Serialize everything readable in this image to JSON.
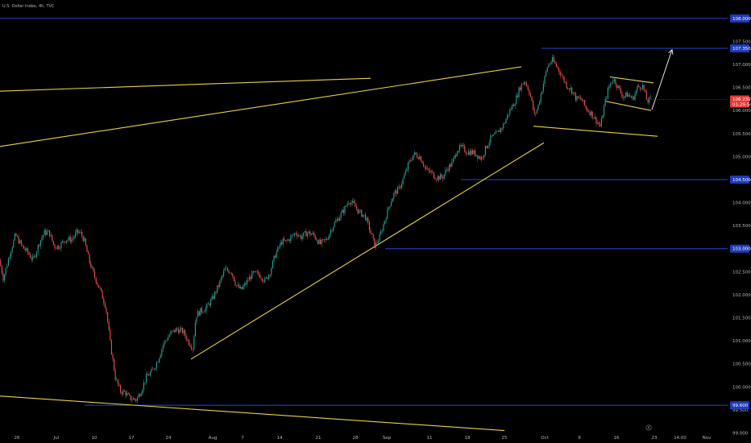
{
  "chart_data": {
    "type": "candlestick",
    "title": "U.S. Dollar Index, 4h, TVC",
    "ylim": [
      98.85,
      108.4
    ],
    "y_ticks": [
      "99.000",
      "99.500",
      "100.000",
      "100.500",
      "101.000",
      "101.500",
      "102.000",
      "102.500",
      "103.000",
      "103.500",
      "104.000",
      "104.500",
      "105.000",
      "105.500",
      "106.000",
      "106.500",
      "107.000",
      "107.500",
      "108.000"
    ],
    "x_ticks": [
      {
        "label": "26",
        "t": 21
      },
      {
        "label": "Jul",
        "t": 70
      },
      {
        "label": "10",
        "t": 117
      },
      {
        "label": "17",
        "t": 163
      },
      {
        "label": "24",
        "t": 209
      },
      {
        "label": "Aug",
        "t": 264
      },
      {
        "label": "7",
        "t": 301
      },
      {
        "label": "14",
        "t": 347
      },
      {
        "label": "21",
        "t": 395
      },
      {
        "label": "28",
        "t": 441
      },
      {
        "label": "Sep",
        "t": 480
      },
      {
        "label": "11",
        "t": 533
      },
      {
        "label": "18",
        "t": 580
      },
      {
        "label": "25",
        "t": 626
      },
      {
        "label": "Oct",
        "t": 676
      },
      {
        "label": "9",
        "t": 719
      },
      {
        "label": "16",
        "t": 765
      },
      {
        "label": "23",
        "t": 812
      },
      {
        "label": "14:00",
        "t": 844
      },
      {
        "label": "Nov",
        "t": 877
      }
    ],
    "horizontal_levels": [
      {
        "label": "108.000",
        "y": 108.0,
        "x_from": 0
      },
      {
        "label": "107.350",
        "y": 107.35,
        "x_from": 672
      },
      {
        "label": "104.500",
        "y": 104.5,
        "x_from": 572
      },
      {
        "label": "103.000",
        "y": 103.0,
        "x_from": 478
      },
      {
        "label": "99.600",
        "y": 99.6,
        "x_from": 105
      }
    ],
    "trendlines": [
      {
        "from": [
          0,
          106.42
        ],
        "to": [
          460,
          106.7
        ]
      },
      {
        "from": [
          0,
          105.22
        ],
        "to": [
          647,
          106.95
        ]
      },
      {
        "from": [
          237,
          100.6
        ],
        "to": [
          675,
          105.3
        ]
      },
      {
        "from": [
          0,
          99.8
        ],
        "to": [
          626,
          99.05
        ]
      },
      {
        "from": [
          662,
          105.66
        ],
        "to": [
          816,
          105.44
        ]
      },
      {
        "from": [
          757,
          106.73
        ],
        "to": [
          811,
          106.6
        ]
      },
      {
        "from": [
          752,
          106.2
        ],
        "to": [
          808,
          106.0
        ]
      }
    ],
    "projection_arrow": {
      "points": [
        [
          809,
          106.02
        ],
        [
          834,
          107.32
        ]
      ]
    },
    "last_price": {
      "value": "106.239",
      "countdown": "01:29:54"
    },
    "scale_mark": "A",
    "anchors": [
      [
        0,
        102.75
      ],
      [
        5,
        102.35
      ],
      [
        13,
        102.9
      ],
      [
        20,
        103.3
      ],
      [
        28,
        103.05
      ],
      [
        36,
        102.9
      ],
      [
        42,
        102.75
      ],
      [
        50,
        103.15
      ],
      [
        56,
        103.35
      ],
      [
        62,
        103.35
      ],
      [
        68,
        103.05
      ],
      [
        74,
        103.05
      ],
      [
        82,
        103.2
      ],
      [
        90,
        103.2
      ],
      [
        96,
        103.35
      ],
      [
        100,
        103.35
      ],
      [
        105,
        103.2
      ],
      [
        112,
        102.7
      ],
      [
        118,
        102.4
      ],
      [
        124,
        102.15
      ],
      [
        132,
        101.75
      ],
      [
        138,
        100.9
      ],
      [
        144,
        100.2
      ],
      [
        150,
        99.9
      ],
      [
        156,
        99.88
      ],
      [
        162,
        99.75
      ],
      [
        170,
        99.72
      ],
      [
        176,
        99.92
      ],
      [
        182,
        100.2
      ],
      [
        190,
        100.35
      ],
      [
        196,
        100.55
      ],
      [
        204,
        100.95
      ],
      [
        212,
        101.15
      ],
      [
        220,
        101.25
      ],
      [
        228,
        101.2
      ],
      [
        234,
        101.0
      ],
      [
        240,
        100.85
      ],
      [
        244,
        101.55
      ],
      [
        250,
        101.65
      ],
      [
        256,
        101.7
      ],
      [
        264,
        101.9
      ],
      [
        272,
        102.2
      ],
      [
        280,
        102.55
      ],
      [
        288,
        102.5
      ],
      [
        294,
        102.2
      ],
      [
        300,
        102.1
      ],
      [
        306,
        102.25
      ],
      [
        314,
        102.45
      ],
      [
        322,
        102.45
      ],
      [
        330,
        102.3
      ],
      [
        336,
        102.5
      ],
      [
        342,
        102.85
      ],
      [
        350,
        103.15
      ],
      [
        356,
        103.15
      ],
      [
        362,
        103.25
      ],
      [
        368,
        103.35
      ],
      [
        374,
        103.25
      ],
      [
        382,
        103.35
      ],
      [
        390,
        103.3
      ],
      [
        398,
        103.1
      ],
      [
        406,
        103.2
      ],
      [
        414,
        103.5
      ],
      [
        420,
        103.65
      ],
      [
        428,
        103.85
      ],
      [
        434,
        104.05
      ],
      [
        440,
        103.95
      ],
      [
        446,
        103.8
      ],
      [
        454,
        103.7
      ],
      [
        460,
        103.4
      ],
      [
        466,
        103.05
      ],
      [
        472,
        103.25
      ],
      [
        478,
        103.6
      ],
      [
        484,
        103.95
      ],
      [
        490,
        104.2
      ],
      [
        496,
        104.3
      ],
      [
        502,
        104.55
      ],
      [
        508,
        104.85
      ],
      [
        514,
        105.05
      ],
      [
        522,
        105.0
      ],
      [
        530,
        104.7
      ],
      [
        536,
        104.65
      ],
      [
        542,
        104.55
      ],
      [
        550,
        104.55
      ],
      [
        556,
        104.75
      ],
      [
        562,
        104.85
      ],
      [
        568,
        105.15
      ],
      [
        574,
        105.2
      ],
      [
        580,
        105.1
      ],
      [
        586,
        105.1
      ],
      [
        592,
        105.05
      ],
      [
        598,
        104.95
      ],
      [
        604,
        105.2
      ],
      [
        610,
        105.4
      ],
      [
        618,
        105.5
      ],
      [
        626,
        105.7
      ],
      [
        632,
        105.95
      ],
      [
        640,
        106.2
      ],
      [
        646,
        106.5
      ],
      [
        652,
        106.65
      ],
      [
        658,
        106.4
      ],
      [
        664,
        105.9
      ],
      [
        668,
        106.05
      ],
      [
        674,
        106.5
      ],
      [
        680,
        106.95
      ],
      [
        686,
        107.1
      ],
      [
        692,
        106.95
      ],
      [
        698,
        106.75
      ],
      [
        704,
        106.55
      ],
      [
        710,
        106.45
      ],
      [
        716,
        106.25
      ],
      [
        722,
        106.25
      ],
      [
        728,
        106.05
      ],
      [
        734,
        105.95
      ],
      [
        740,
        105.8
      ],
      [
        746,
        105.65
      ],
      [
        750,
        106.05
      ],
      [
        756,
        106.5
      ],
      [
        762,
        106.7
      ],
      [
        768,
        106.5
      ],
      [
        774,
        106.3
      ],
      [
        780,
        106.35
      ],
      [
        786,
        106.25
      ],
      [
        792,
        106.5
      ],
      [
        798,
        106.55
      ],
      [
        804,
        106.2
      ],
      [
        808,
        106.24
      ]
    ]
  },
  "colors": {
    "background": "#000000",
    "up": "#26a69a",
    "down": "#ef5350",
    "level": "#2346d6",
    "level_label_bg": "#1e3bb8",
    "trendline": "#e6d24a",
    "arrow": "#ffffff",
    "last_price_bg": "#e53935",
    "axis_text": "#b2b5be"
  }
}
